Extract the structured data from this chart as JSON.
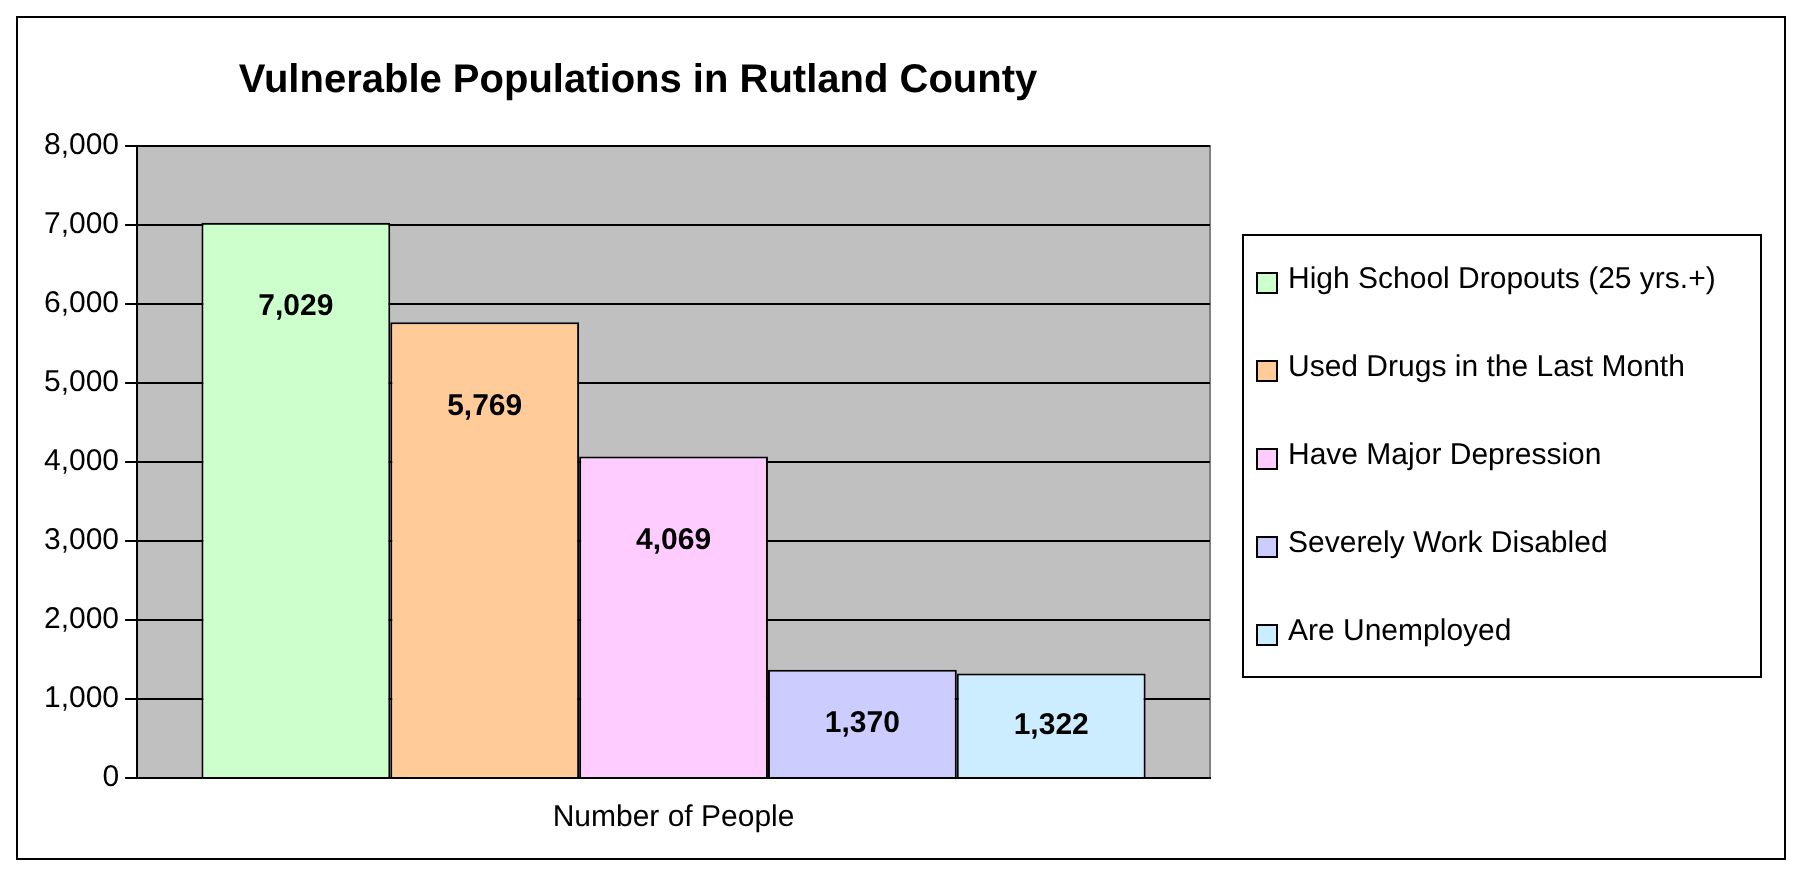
{
  "chart_data": {
    "type": "bar",
    "title": "Vulnerable Populations in Rutland County",
    "categories": [
      "Number of People"
    ],
    "series": [
      {
        "name": "High School Dropouts (25 yrs.+)",
        "color": "#ccffcc",
        "values": [
          7029
        ],
        "value_labels": [
          "7,029"
        ]
      },
      {
        "name": "Used Drugs in the Last Month",
        "color": "#ffcc99",
        "values": [
          5769
        ],
        "value_labels": [
          "5,769"
        ]
      },
      {
        "name": "Have Major Depression",
        "color": "#ffccff",
        "values": [
          4069
        ],
        "value_labels": [
          "4,069"
        ]
      },
      {
        "name": "Severely Work Disabled",
        "color": "#ccccff",
        "values": [
          1370
        ],
        "value_labels": [
          "1,370"
        ]
      },
      {
        "name": "Are Unemployed",
        "color": "#ccecff",
        "values": [
          1322
        ],
        "value_labels": [
          "1,322"
        ]
      }
    ],
    "ylim": [
      0,
      8000
    ],
    "yticks": [
      {
        "value": 0,
        "label": "0"
      },
      {
        "value": 1000,
        "label": "1,000"
      },
      {
        "value": 2000,
        "label": "2,000"
      },
      {
        "value": 3000,
        "label": "3,000"
      },
      {
        "value": 4000,
        "label": "4,000"
      },
      {
        "value": 5000,
        "label": "5,000"
      },
      {
        "value": 6000,
        "label": "6,000"
      },
      {
        "value": 7000,
        "label": "7,000"
      },
      {
        "value": 8000,
        "label": "8,000"
      }
    ],
    "grid": "y",
    "legend": "right"
  }
}
